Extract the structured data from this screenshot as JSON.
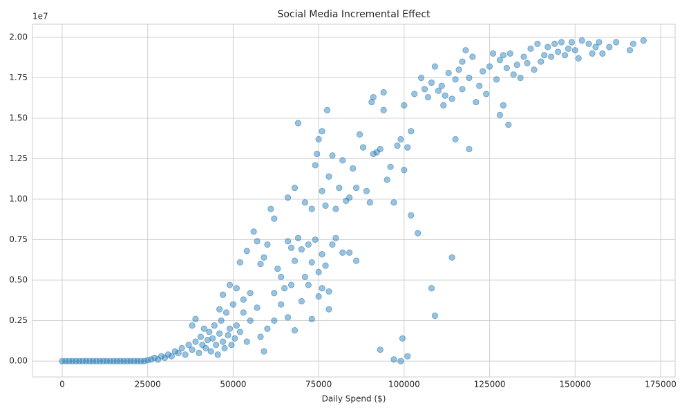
{
  "chart_data": {
    "type": "scatter",
    "title": "Social Media Incremental Effect",
    "x_label": "Daily Spend ($)",
    "y_offset_label": "1e7",
    "color": "#1f77b4",
    "grid": true,
    "xlim": [
      -8690,
      179240
    ],
    "ylim": [
      -0.098,
      2.081
    ],
    "xticks": [
      0,
      25000,
      50000,
      75000,
      100000,
      125000,
      150000,
      175000
    ],
    "yticks": [
      {
        "value": 0,
        "label": "0.00"
      },
      {
        "value": 0.25,
        "label": "0.25"
      },
      {
        "value": 0.5,
        "label": "0.50"
      },
      {
        "value": 0.75,
        "label": "0.75"
      },
      {
        "value": 1,
        "label": "1.00"
      },
      {
        "value": 1.25,
        "label": "1.25"
      },
      {
        "value": 1.5,
        "label": "1.50"
      },
      {
        "value": 1.75,
        "label": "1.75"
      },
      {
        "value": 2,
        "label": "2.00"
      }
    ],
    "x": [
      0,
      1000,
      2000,
      3000,
      4000,
      5000,
      6000,
      7000,
      8000,
      9000,
      10000,
      11000,
      12000,
      13000,
      14000,
      15000,
      16000,
      17000,
      18000,
      19000,
      20000,
      21000,
      22000,
      23000,
      24000,
      25000,
      26000,
      27000,
      28000,
      29000,
      30000,
      31000,
      32000,
      33000,
      34000,
      35000,
      36000,
      37000,
      38000,
      39000,
      40000,
      40500,
      41000,
      41500,
      42000,
      42500,
      43000,
      43500,
      44000,
      44500,
      45000,
      45500,
      46000,
      46500,
      47000,
      47500,
      48000,
      48500,
      49000,
      49500,
      50000,
      50500,
      51000,
      52000,
      53000,
      54000,
      55000,
      38000,
      39000,
      46000,
      47000,
      49000,
      51000,
      53000,
      55000,
      57000,
      58000,
      59000,
      60000,
      52000,
      54000,
      56000,
      57000,
      58000,
      59000,
      60000,
      61000,
      62000,
      63000,
      64000,
      65000,
      66000,
      67000,
      68000,
      69000,
      70000,
      71000,
      72000,
      73000,
      74000,
      75000,
      76000,
      77000,
      78000,
      79000,
      80000,
      82000,
      84000,
      86000,
      62000,
      64000,
      66000,
      68000,
      70000,
      73000,
      75000,
      62000,
      67000,
      72000,
      76000,
      78000,
      66000,
      68000,
      71000,
      73000,
      74000,
      74500,
      75000,
      76000,
      77000,
      78000,
      79000,
      80000,
      81000,
      82000,
      83000,
      84000,
      85000,
      86000,
      87000,
      88000,
      89000,
      90000,
      91000,
      92000,
      93000,
      94000,
      95000,
      96000,
      97000,
      98000,
      99000,
      100000,
      101000,
      102000,
      90500,
      91000,
      94000,
      100000,
      69000,
      77500,
      76000,
      93000,
      97000,
      99000,
      101000,
      99500,
      108000,
      109000,
      114000,
      104000,
      102000,
      119000,
      115000,
      130500,
      128000,
      129000,
      103000,
      105000,
      106000,
      107000,
      108000,
      109000,
      110000,
      111000,
      112000,
      113000,
      114000,
      115000,
      116000,
      117000,
      118000,
      119000,
      120000,
      121000,
      122000,
      123000,
      124000,
      125000,
      126000,
      127000,
      128000,
      129000,
      130000,
      111500,
      117000,
      131000,
      132000,
      133000,
      134000,
      135000,
      136000,
      137000,
      138000,
      139000,
      140000,
      141000,
      142000,
      143000,
      144000,
      145000,
      146000,
      147000,
      148000,
      149000,
      150000,
      151000,
      152000,
      154000,
      155000,
      156000,
      157000,
      158000,
      160000,
      162000,
      166000,
      167000,
      170000
    ],
    "values": [
      0,
      0,
      0,
      0,
      0,
      0,
      0,
      0,
      0,
      0,
      0,
      0,
      0,
      0,
      0,
      0,
      0,
      0,
      0,
      0,
      0,
      0,
      0,
      0,
      0,
      0.005,
      0.01,
      0.02,
      0.01,
      0.03,
      0.02,
      0.04,
      0.03,
      0.06,
      0.05,
      0.08,
      0.04,
      0.1,
      0.07,
      0.12,
      0.05,
      0.15,
      0.1,
      0.2,
      0.08,
      0.13,
      0.18,
      0.06,
      0.14,
      0.22,
      0.1,
      0.04,
      0.17,
      0.25,
      0.12,
      0.08,
      0.3,
      0.16,
      0.2,
      0.1,
      0.35,
      0.14,
      0.22,
      0.18,
      0.3,
      0.12,
      0.25,
      0.22,
      0.26,
      0.32,
      0.41,
      0.47,
      0.45,
      0.38,
      0.42,
      0.33,
      0.15,
      0.06,
      0.2,
      0.61,
      0.68,
      0.8,
      0.74,
      0.6,
      0.64,
      0.72,
      0.94,
      0.88,
      0.57,
      0.52,
      0.45,
      0.74,
      0.7,
      0.62,
      0.76,
      0.69,
      0.52,
      0.72,
      0.61,
      0.75,
      0.55,
      0.66,
      0.59,
      0.32,
      0.72,
      0.76,
      0.67,
      0.67,
      0.62,
      0.25,
      0.35,
      0.27,
      0.19,
      0.37,
      0.26,
      0.4,
      0.42,
      0.47,
      0.47,
      0.45,
      0.43,
      1.01,
      1.07,
      0.98,
      0.94,
      1.21,
      1.28,
      1.37,
      1.05,
      0.96,
      1.14,
      1.27,
      0.94,
      1.07,
      1.24,
      0.99,
      1.01,
      1.19,
      1.07,
      1.4,
      1.32,
      1.05,
      0.98,
      1.28,
      1.29,
      1.31,
      1.55,
      1.12,
      1.2,
      0.98,
      1.33,
      1.37,
      1.18,
      1.32,
      1.42,
      1.6,
      1.63,
      1.66,
      1.58,
      1.47,
      1.55,
      1.42,
      0.07,
      0.01,
      0,
      0.03,
      0.14,
      0.45,
      0.28,
      0.64,
      0.79,
      0.9,
      1.31,
      1.37,
      1.46,
      1.52,
      1.58,
      1.65,
      1.75,
      1.68,
      1.63,
      1.72,
      1.82,
      1.67,
      1.7,
      1.64,
      1.78,
      1.62,
      1.74,
      1.8,
      1.68,
      1.92,
      1.75,
      1.88,
      1.6,
      1.7,
      1.79,
      1.65,
      1.82,
      1.9,
      1.74,
      1.86,
      1.89,
      1.81,
      1.58,
      1.85,
      1.9,
      1.77,
      1.83,
      1.75,
      1.88,
      1.84,
      1.93,
      1.8,
      1.96,
      1.85,
      1.89,
      1.94,
      1.88,
      1.96,
      1.91,
      1.97,
      1.89,
      1.93,
      1.97,
      1.92,
      1.87,
      1.98,
      1.96,
      1.9,
      1.94,
      1.97,
      1.9,
      1.94,
      1.97,
      1.92,
      1.96,
      1.98
    ]
  }
}
